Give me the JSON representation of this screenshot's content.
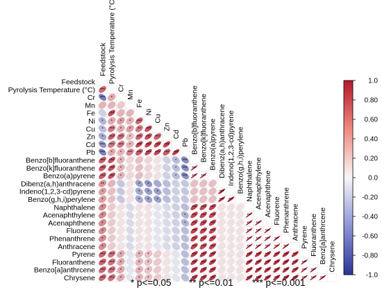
{
  "chart_data": {
    "type": "heatmap",
    "title": "",
    "variables": [
      "Feedstock",
      "Pyrolysis Temperature (°C)",
      "Cr",
      "Mn",
      "Fe",
      "Ni",
      "Cu",
      "Zn",
      "Cd",
      "Pb",
      "Benzo[b]fluoranthene",
      "Benzo[k]fluoranthene",
      "Benzo(a)pyrene",
      "Dibenz(a,h)anthracene",
      "Indeno(1,2,3-cd)pyrene",
      "Benzo(g,h,i)perylene",
      "Naphthalene",
      "Acenaphthylene",
      "Acenaphthene",
      "Fluorene",
      "Phenanthrene",
      "Anthracene",
      "Pyrene",
      "Fluoranthene",
      "Benzo[a]anthrcene",
      "Chrysene"
    ],
    "column_labels": [
      "Feedstock",
      "Pyrolysis Temperature (°C)",
      "Cr",
      "Mn",
      "Fe",
      "Ni",
      "Cu",
      "Zn",
      "Cd",
      "Pb",
      "Benzo[b]fluoranthene",
      "Benzo[k]fluoranthene",
      "Benzo(a)pyrene",
      "Dibenz(a,h)anthracene",
      "Indeno(1,2,3-cd)pyrene",
      "Benzo(g,h,i)perylene",
      "Naphthalene",
      "Acenaphthylene",
      "Acenaphthene",
      "Fluorene",
      "Phenanthrene",
      "Anthracene",
      "Pyrene",
      "Fluoranthene",
      "Benz[a]anthrcene",
      "Chrysene"
    ],
    "colorbar": {
      "ticks": [
        "1.0",
        "0.80",
        "0.60",
        "0.40",
        "0.20",
        "0.0",
        "-0.20",
        "-0.40",
        "-0.60",
        "-0.80",
        "-1.0"
      ],
      "range": [
        -1,
        1
      ],
      "colors": {
        "positive": "#b2182b",
        "neutral": "#f7f7f7",
        "negative": "#2c3594"
      }
    },
    "significance_legend": [
      "* p<=0.05",
      "** p<=0.01",
      "*** p<=0.001"
    ],
    "lower_triangle_rows": [
      {
        "values": [],
        "stars": []
      },
      {
        "values": [
          0.62
        ],
        "stars": [
          3
        ]
      },
      {
        "values": [
          -0.62,
          0.35
        ],
        "stars": [
          3,
          1
        ]
      },
      {
        "values": [
          0.3,
          0.3,
          0.2
        ],
        "stars": [
          0,
          0,
          0
        ]
      },
      {
        "values": [
          -0.2,
          0.75,
          0.3,
          0.3
        ],
        "stars": [
          0,
          3,
          0,
          0
        ]
      },
      {
        "values": [
          -0.35,
          0.35,
          0.4,
          0.3,
          0.65
        ],
        "stars": [
          1,
          1,
          1,
          1,
          3
        ]
      },
      {
        "values": [
          -0.3,
          0.55,
          0.35,
          0.4,
          0.55,
          0.75
        ],
        "stars": [
          1,
          3,
          1,
          1,
          2,
          3
        ]
      },
      {
        "values": [
          -0.4,
          0.7,
          0.6,
          0.25,
          0.65,
          0.75,
          0.65
        ],
        "stars": [
          1,
          3,
          3,
          1,
          3,
          3,
          3
        ]
      },
      {
        "values": [
          -0.5,
          0.55,
          0.55,
          0.3,
          0.8,
          0.8,
          0.8,
          0.8
        ],
        "stars": [
          3,
          3,
          3,
          1,
          3,
          3,
          3,
          3
        ]
      },
      {
        "values": [
          -0.6,
          0.35,
          0.3,
          0.5,
          0.7,
          0.8,
          0.8,
          0.7,
          0.85
        ],
        "stars": [
          3,
          1,
          1,
          3,
          3,
          3,
          3,
          3,
          3
        ]
      },
      {
        "values": [
          0.7,
          0.75,
          0.3,
          0.15,
          0.25,
          0.15,
          0.1,
          -0.2,
          -0.3,
          -0.55
        ],
        "stars": [
          3,
          3,
          1,
          0,
          0,
          0,
          0,
          0,
          1,
          3
        ]
      },
      {
        "values": [
          0.7,
          0.75,
          0.3,
          0.15,
          0.25,
          0.15,
          0.1,
          -0.2,
          -0.3,
          -0.55,
          0.98
        ],
        "stars": [
          3,
          3,
          1,
          0,
          0,
          0,
          0,
          0,
          1,
          3,
          3
        ]
      },
      {
        "values": [
          0.7,
          0.75,
          0.3,
          0.15,
          0.25,
          0.15,
          0.1,
          -0.2,
          -0.3,
          -0.55,
          0.98,
          0.98
        ],
        "stars": [
          3,
          3,
          1,
          0,
          0,
          0,
          0,
          0,
          1,
          3,
          3,
          3
        ]
      },
      {
        "values": [
          0.45,
          0.3,
          -0.25,
          0.1,
          -0.45,
          -0.5,
          -0.4,
          -0.3,
          -0.2,
          -0.25,
          0.25,
          0.25,
          0.25
        ],
        "stars": [
          2,
          0,
          0,
          0,
          1,
          1,
          0,
          0,
          0,
          0,
          0,
          0,
          0
        ]
      },
      {
        "values": [
          0.4,
          0.25,
          -0.25,
          0.1,
          -0.4,
          -0.45,
          -0.45,
          -0.3,
          -0.2,
          -0.25,
          0.25,
          0.25,
          0.25,
          0.95
        ],
        "stars": [
          1,
          0,
          0,
          0,
          1,
          1,
          1,
          0,
          0,
          0,
          0,
          0,
          0,
          3
        ]
      },
      {
        "values": [
          0.4,
          0.25,
          -0.25,
          0.1,
          -0.4,
          -0.45,
          -0.45,
          -0.3,
          -0.2,
          -0.25,
          0.25,
          0.25,
          0.25,
          0.95,
          0.95
        ],
        "stars": [
          1,
          0,
          0,
          0,
          1,
          1,
          1,
          0,
          0,
          0,
          0,
          0,
          0,
          3,
          3
        ]
      },
      {
        "values": [
          0.5,
          0.2,
          0.1,
          -0.15,
          0.1,
          0.1,
          -0.1,
          -0.15,
          -0.2,
          -0.3,
          0.8,
          0.8,
          0.8,
          0.1,
          0.1,
          0.1
        ],
        "stars": [
          1,
          0,
          0,
          0,
          0,
          0,
          0,
          0,
          0,
          0,
          3,
          3,
          3,
          0,
          0,
          0
        ]
      },
      {
        "values": [
          0.5,
          0.2,
          0.1,
          -0.15,
          0.1,
          0.1,
          -0.1,
          -0.15,
          -0.2,
          -0.35,
          0.8,
          0.8,
          0.8,
          0.1,
          0.1,
          0.1,
          0.98
        ],
        "stars": [
          1,
          0,
          0,
          0,
          0,
          0,
          0,
          0,
          0,
          1,
          3,
          3,
          3,
          0,
          0,
          0,
          3
        ]
      },
      {
        "values": [
          0.5,
          0.2,
          0.1,
          -0.15,
          0.1,
          0.1,
          -0.1,
          -0.15,
          -0.2,
          -0.35,
          0.8,
          0.8,
          0.8,
          0.1,
          0.1,
          0.1,
          0.98,
          0.98
        ],
        "stars": [
          1,
          0,
          0,
          0,
          0,
          0,
          0,
          0,
          0,
          1,
          3,
          3,
          3,
          0,
          0,
          0,
          3,
          3
        ]
      },
      {
        "values": [
          0.5,
          0.2,
          0.1,
          -0.15,
          0.1,
          0.1,
          -0.1,
          -0.15,
          -0.2,
          -0.3,
          0.8,
          0.8,
          0.8,
          0.1,
          0.1,
          0.1,
          0.98,
          0.98,
          0.98
        ],
        "stars": [
          1,
          0,
          0,
          0,
          0,
          0,
          0,
          0,
          0,
          0,
          3,
          3,
          3,
          0,
          0,
          0,
          3,
          3,
          3
        ]
      },
      {
        "values": [
          0.5,
          0.2,
          0.1,
          -0.15,
          0.1,
          0.1,
          -0.1,
          -0.15,
          -0.2,
          -0.3,
          0.8,
          0.8,
          0.8,
          0.1,
          0.1,
          0.1,
          0.98,
          0.98,
          0.98,
          0.98
        ],
        "stars": [
          1,
          0,
          0,
          0,
          0,
          0,
          0,
          0,
          0,
          0,
          3,
          3,
          3,
          0,
          0,
          0,
          3,
          3,
          3,
          3
        ]
      },
      {
        "values": [
          0.5,
          0.2,
          0.1,
          -0.15,
          0.1,
          0.1,
          -0.1,
          -0.15,
          -0.2,
          -0.3,
          0.8,
          0.8,
          0.8,
          0.1,
          0.1,
          0.1,
          0.98,
          0.98,
          0.98,
          0.98,
          0.98
        ],
        "stars": [
          1,
          0,
          0,
          0,
          0,
          0,
          0,
          0,
          0,
          0,
          3,
          3,
          3,
          0,
          0,
          0,
          3,
          3,
          3,
          3,
          3
        ]
      },
      {
        "values": [
          0.65,
          0.6,
          0.35,
          -0.1,
          0.3,
          0.25,
          0.2,
          0.1,
          -0.1,
          -0.3,
          0.85,
          0.85,
          0.85,
          0.1,
          0.1,
          0.1,
          0.9,
          0.9,
          0.9,
          0.9,
          0.9,
          0.9
        ],
        "stars": [
          3,
          3,
          1,
          0,
          1,
          1,
          0,
          0,
          0,
          0,
          3,
          3,
          3,
          0,
          0,
          0,
          3,
          3,
          3,
          3,
          3,
          3
        ]
      },
      {
        "values": [
          0.65,
          0.6,
          0.35,
          -0.1,
          0.3,
          0.25,
          0.2,
          0.1,
          -0.1,
          -0.3,
          0.85,
          0.85,
          0.85,
          0.1,
          0.1,
          0.1,
          0.9,
          0.9,
          0.9,
          0.9,
          0.9,
          0.9,
          0.98
        ],
        "stars": [
          3,
          3,
          1,
          0,
          1,
          1,
          0,
          0,
          0,
          0,
          3,
          3,
          3,
          0,
          0,
          0,
          3,
          3,
          3,
          3,
          3,
          3,
          3
        ]
      },
      {
        "values": [
          0.65,
          0.6,
          0.35,
          -0.1,
          0.3,
          0.25,
          0.2,
          0.1,
          -0.1,
          -0.3,
          0.85,
          0.85,
          0.85,
          0.1,
          0.1,
          0.1,
          0.9,
          0.9,
          0.9,
          0.9,
          0.9,
          0.9,
          0.98,
          0.98
        ],
        "stars": [
          3,
          3,
          1,
          0,
          1,
          1,
          0,
          0,
          0,
          0,
          3,
          3,
          3,
          0,
          0,
          0,
          3,
          3,
          3,
          3,
          3,
          3,
          3,
          3
        ]
      },
      {
        "values": [
          0.65,
          0.6,
          0.35,
          -0.1,
          0.3,
          0.25,
          0.2,
          0.1,
          -0.1,
          -0.3,
          0.85,
          0.85,
          0.85,
          0.1,
          0.1,
          0.1,
          0.9,
          0.9,
          0.9,
          0.9,
          0.9,
          0.9,
          0.98,
          0.98,
          0.98
        ],
        "stars": [
          3,
          3,
          1,
          0,
          1,
          1,
          0,
          0,
          0,
          0,
          3,
          3,
          3,
          0,
          0,
          0,
          3,
          3,
          3,
          3,
          3,
          3,
          3,
          3,
          3
        ]
      }
    ]
  }
}
